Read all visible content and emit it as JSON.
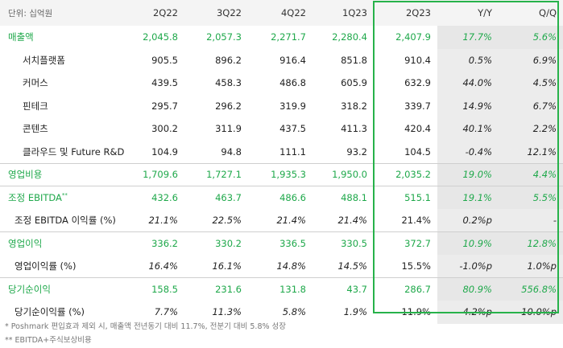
{
  "table": {
    "unit_label": "단위: 십억원",
    "columns": [
      "2Q22",
      "3Q22",
      "4Q22",
      "1Q23",
      "2Q23",
      "Y/Y",
      "Q/Q"
    ],
    "rows": [
      {
        "label": "매출액",
        "values": [
          "2,045.8",
          "2,057.3",
          "2,271.7",
          "2,280.4",
          "2,407.9",
          "17.7%",
          "5.6%"
        ]
      },
      {
        "label": "서치플랫폼",
        "values": [
          "905.5",
          "896.2",
          "916.4",
          "851.8",
          "910.4",
          "0.5%",
          "6.9%"
        ]
      },
      {
        "label": "커머스",
        "values": [
          "439.5",
          "458.3",
          "486.8",
          "605.9",
          "632.9",
          "44.0%",
          "4.5%"
        ]
      },
      {
        "label": "핀테크",
        "values": [
          "295.7",
          "296.2",
          "319.9",
          "318.2",
          "339.7",
          "14.9%",
          "6.7%"
        ]
      },
      {
        "label": "콘텐츠",
        "values": [
          "300.2",
          "311.9",
          "437.5",
          "411.3",
          "420.4",
          "40.1%",
          "2.2%"
        ]
      },
      {
        "label": "클라우드 및 Future R&D",
        "values": [
          "104.9",
          "94.8",
          "111.1",
          "93.2",
          "104.5",
          "-0.4%",
          "12.1%"
        ]
      },
      {
        "label": "영업비용",
        "values": [
          "1,709.6",
          "1,727.1",
          "1,935.3",
          "1,950.0",
          "2,035.2",
          "19.0%",
          "4.4%"
        ]
      },
      {
        "label": "조정 EBITDA",
        "sup": "**",
        "values": [
          "432.6",
          "463.7",
          "486.6",
          "488.1",
          "515.1",
          "19.1%",
          "5.5%"
        ]
      },
      {
        "label": "조정 EBITDA 이익률 (%)",
        "values": [
          "21.1%",
          "22.5%",
          "21.4%",
          "21.4%",
          "21.4%",
          "0.2%p",
          "-"
        ]
      },
      {
        "label": "영업이익",
        "values": [
          "336.2",
          "330.2",
          "336.5",
          "330.5",
          "372.7",
          "10.9%",
          "12.8%"
        ]
      },
      {
        "label": "영업이익률 (%)",
        "values": [
          "16.4%",
          "16.1%",
          "14.8%",
          "14.5%",
          "15.5%",
          "-1.0%p",
          "1.0%p"
        ]
      },
      {
        "label": "당기순이익",
        "values": [
          "158.5",
          "231.6",
          "131.8",
          "43.7",
          "286.7",
          "80.9%",
          "556.8%"
        ]
      },
      {
        "label": "당기순이익률 (%)",
        "values": [
          "7.7%",
          "11.3%",
          "5.8%",
          "1.9%",
          "11.9%",
          "4.2%p",
          "10.0%p"
        ]
      }
    ]
  },
  "footnotes": {
    "note1": "* Poshmark 편입효과 제외 시, 매출액 전년동기 대비 11.7%, 전분기 대비 5.8% 성장",
    "note2": "** EBITDA+주식보상비용"
  },
  "colors": {
    "highlight_green": "#1ea84a",
    "box_border": "#27b24a",
    "shade": "#ececec"
  }
}
